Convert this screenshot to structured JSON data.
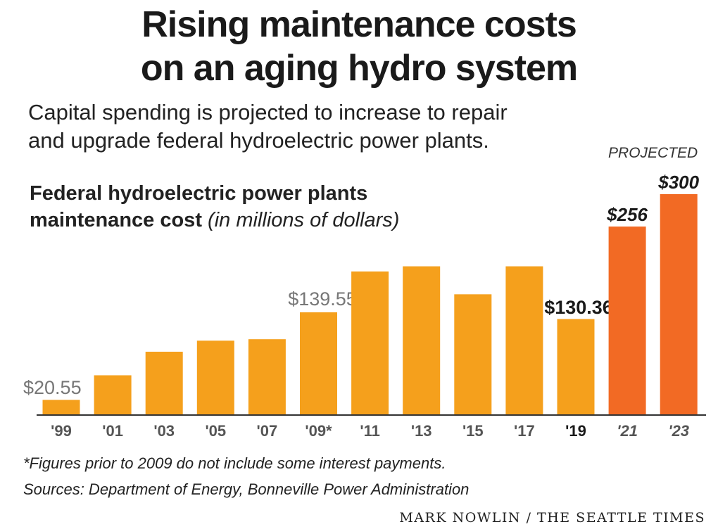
{
  "header": {
    "title_line1": "Rising maintenance costs",
    "title_line2": "on an aging hydro system",
    "subtitle_line1": "Capital spending is projected to increase to repair",
    "subtitle_line2": "and upgrade federal hydroelectric power plants."
  },
  "chart_data": {
    "type": "bar",
    "title_line1": "Federal hydroelectric power plants",
    "title_line2": "maintenance cost",
    "title_unit": "(in millions of dollars)",
    "categories": [
      "'99",
      "'01",
      "'03",
      "'05",
      "'07",
      "'09*",
      "'11",
      "'13",
      "'15",
      "'17",
      "'19",
      "'21",
      "'23"
    ],
    "values": [
      20.55,
      54,
      86,
      101,
      103,
      139.55,
      195,
      202,
      164,
      202,
      130.36,
      256,
      300
    ],
    "projected": [
      false,
      false,
      false,
      false,
      false,
      false,
      false,
      false,
      false,
      false,
      false,
      true,
      true
    ],
    "data_labels": [
      "$20.55",
      "",
      "",
      "",
      "",
      "$139.55",
      "",
      "",
      "",
      "",
      "$130.36",
      "$256",
      "$300"
    ],
    "projected_label": "PROJECTED",
    "ylim": [
      0,
      310
    ],
    "grid": false,
    "colors": {
      "actual": "#f5a01c",
      "projected": "#f26a24",
      "label_gray": "#777777",
      "label_dark": "#1a1a1a",
      "baseline": "#333333"
    }
  },
  "footer": {
    "footnote": "*Figures prior to 2009 do not include some interest payments.",
    "sources": "Sources: Department of Energy, Bonneville Power Administration",
    "credit": "MARK NOWLIN / THE SEATTLE TIMES"
  }
}
